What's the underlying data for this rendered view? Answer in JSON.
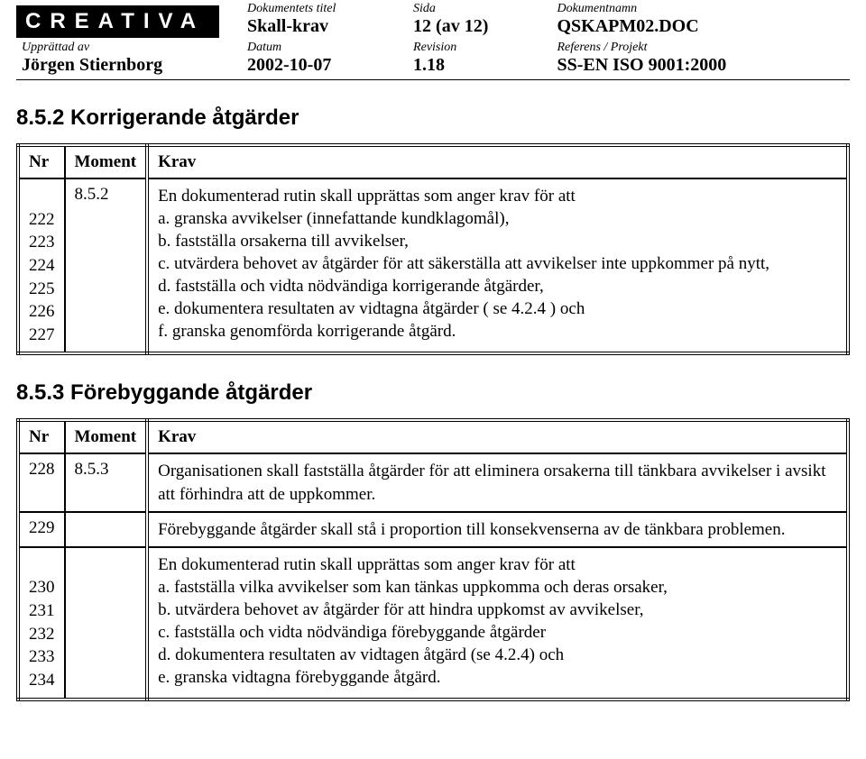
{
  "header": {
    "logo_text": "CREATIVA",
    "row1": {
      "col2_label": "Dokumentets titel",
      "col2_value": "Skall-krav",
      "col3_label": "Sida",
      "col3_value": "12 (av 12)",
      "col4_label": "Dokumentnamn",
      "col4_value": "QSKAPM02.DOC"
    },
    "row2": {
      "col1_label": "Upprättad av",
      "col1_value": "Jörgen Stiernborg",
      "col2_label": "Datum",
      "col2_value": "2002-10-07",
      "col3_label": "Revision",
      "col3_value": "1.18",
      "col4_label": "Referens / Projekt",
      "col4_value": "SS-EN ISO 9001:2000"
    }
  },
  "section1": {
    "title": "8.5.2 Korrigerande åtgärder",
    "columns": {
      "nr": "Nr",
      "moment": "Moment",
      "krav": "Krav"
    },
    "row": {
      "nrs": [
        "222",
        "223",
        "224",
        "225",
        "226",
        "227"
      ],
      "moment": "8.5.2",
      "intro": "En dokumenterad rutin skall upprättas som anger krav för att",
      "items": [
        "a. granska avvikelser (innefattande kundklagomål),",
        "b. fastställa orsakerna till avvikelser,",
        "c. utvärdera behovet av åtgärder för att säkerställa att avvikelser inte uppkommer på nytt,",
        "d. fastställa och vidta nödvändiga korrigerande åtgärder,",
        "e. dokumentera resultaten av vidtagna åtgärder ( se 4.2.4 ) och",
        "f. granska genomförda korrigerande åtgärd."
      ]
    }
  },
  "section2": {
    "title": "8.5.3 Förebyggande åtgärder",
    "columns": {
      "nr": "Nr",
      "moment": "Moment",
      "krav": "Krav"
    },
    "row1": {
      "nr": "228",
      "moment": "8.5.3",
      "text": "Organisationen skall fastställa åtgärder för att eliminera orsakerna till tänkbara avvikelser i avsikt att förhindra att de uppkommer."
    },
    "row2": {
      "nr": "229",
      "text": "Förebyggande åtgärder skall stå i proportion till konsekvenserna av de tänkbara problemen."
    },
    "row3": {
      "nrs": [
        "230",
        "231",
        "232",
        "233",
        "234"
      ],
      "intro": "En dokumenterad rutin skall upprättas som anger krav för att",
      "items": [
        "a. fastställa vilka avvikelser som kan tänkas uppkomma och deras orsaker,",
        "b. utvärdera behovet av åtgärder för att hindra uppkomst av avvikelser,",
        "c. fastställa och vidta nödvändiga förebyggande åtgärder",
        "d. dokumentera resultaten av vidtagen åtgärd (se 4.2.4) och",
        "e. granska vidtagna förebyggande åtgärd."
      ]
    }
  }
}
